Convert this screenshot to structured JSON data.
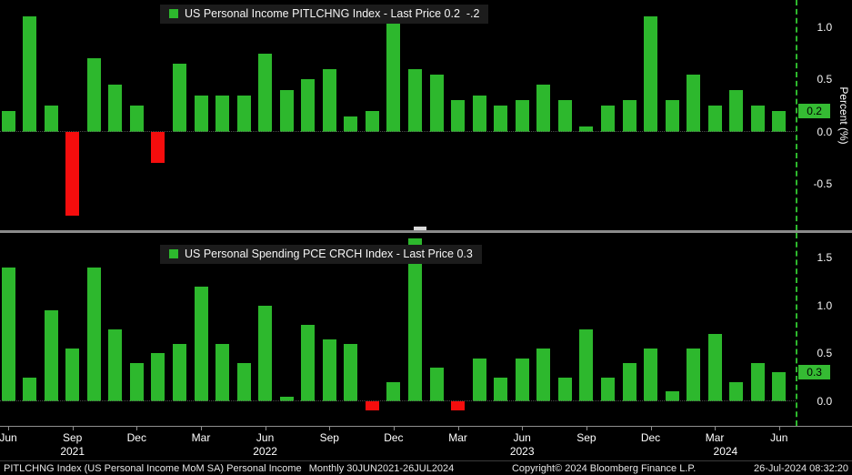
{
  "colors": {
    "background": "#000000",
    "bar_positive": "#2db82d",
    "bar_negative": "#f50d0d",
    "last_price_box": "#35bb33",
    "axis_text": "#f5f5f5"
  },
  "panels": [
    {
      "legend": "US Personal Income PITLCHNG Index - Last Price 0.2  -.2",
      "last_price_label": "0.2",
      "axis_title": "Percent (%)"
    },
    {
      "legend": "US Personal Spending PCE CRCH Index - Last Price 0.3",
      "last_price_label": "0.3"
    }
  ],
  "chart_data": [
    {
      "type": "bar",
      "title": "US Personal Income PITLCHNG Index - Last Price 0.2  -.2",
      "ylabel": "Percent (%)",
      "categories": [
        "Jun 2021",
        "Jul 2021",
        "Aug 2021",
        "Sep 2021",
        "Oct 2021",
        "Nov 2021",
        "Dec 2021",
        "Jan 2022",
        "Feb 2022",
        "Mar 2022",
        "Apr 2022",
        "May 2022",
        "Jun 2022",
        "Jul 2022",
        "Aug 2022",
        "Sep 2022",
        "Oct 2022",
        "Nov 2022",
        "Dec 2022",
        "Jan 2023",
        "Feb 2023",
        "Mar 2023",
        "Apr 2023",
        "May 2023",
        "Jun 2023",
        "Jul 2023",
        "Aug 2023",
        "Sep 2023",
        "Oct 2023",
        "Nov 2023",
        "Dec 2023",
        "Jan 2024",
        "Feb 2024",
        "Mar 2024",
        "Apr 2024",
        "May 2024",
        "Jun 2024"
      ],
      "values": [
        0.2,
        1.1,
        0.25,
        -0.8,
        0.7,
        0.45,
        0.25,
        -0.3,
        0.65,
        0.35,
        0.35,
        0.35,
        0.75,
        0.4,
        0.5,
        0.6,
        0.15,
        0.2,
        1.05,
        0.6,
        0.55,
        0.3,
        0.35,
        0.25,
        0.3,
        0.45,
        0.3,
        0.05,
        0.25,
        0.3,
        1.1,
        0.3,
        0.55,
        0.25,
        0.4,
        0.25,
        0.2
      ],
      "yticks": [
        "1.0",
        "0.5",
        "0.0",
        "-0.5"
      ],
      "ylim": [
        -0.94,
        1.26
      ],
      "last_price": 0.2,
      "grid": false,
      "legend_position": "top-center"
    },
    {
      "type": "bar",
      "title": "US Personal Spending PCE CRCH Index - Last Price 0.3",
      "ylabel": "Percent (%)",
      "categories": [
        "Jun 2021",
        "Jul 2021",
        "Aug 2021",
        "Sep 2021",
        "Oct 2021",
        "Nov 2021",
        "Dec 2021",
        "Jan 2022",
        "Feb 2022",
        "Mar 2022",
        "Apr 2022",
        "May 2022",
        "Jun 2022",
        "Jul 2022",
        "Aug 2022",
        "Sep 2022",
        "Oct 2022",
        "Nov 2022",
        "Dec 2022",
        "Jan 2023",
        "Feb 2023",
        "Mar 2023",
        "Apr 2023",
        "May 2023",
        "Jun 2023",
        "Jul 2023",
        "Aug 2023",
        "Sep 2023",
        "Oct 2023",
        "Nov 2023",
        "Dec 2023",
        "Jan 2024",
        "Feb 2024",
        "Mar 2024",
        "Apr 2024",
        "May 2024",
        "Jun 2024"
      ],
      "values": [
        1.4,
        0.25,
        0.95,
        0.55,
        1.4,
        0.75,
        0.4,
        0.5,
        0.6,
        1.2,
        0.6,
        0.4,
        1.0,
        0.05,
        0.8,
        0.65,
        0.6,
        -0.1,
        0.2,
        1.7,
        0.35,
        -0.1,
        0.45,
        0.25,
        0.45,
        0.55,
        0.25,
        0.75,
        0.25,
        0.4,
        0.55,
        0.1,
        0.55,
        0.7,
        0.2,
        0.4,
        0.3
      ],
      "yticks": [
        "1.5",
        "1.0",
        "0.5",
        "0.0"
      ],
      "ylim": [
        -0.26,
        1.76
      ],
      "last_price": 0.3,
      "grid": false,
      "legend_position": "top-center"
    }
  ],
  "x_axis": {
    "month_ticks": [
      {
        "label": "Jun",
        "index": 0
      },
      {
        "label": "Sep",
        "index": 3
      },
      {
        "label": "Dec",
        "index": 6
      },
      {
        "label": "Mar",
        "index": 9
      },
      {
        "label": "Jun",
        "index": 12
      },
      {
        "label": "Sep",
        "index": 15
      },
      {
        "label": "Dec",
        "index": 18
      },
      {
        "label": "Mar",
        "index": 21
      },
      {
        "label": "Jun",
        "index": 24
      },
      {
        "label": "Sep",
        "index": 27
      },
      {
        "label": "Dec",
        "index": 30
      },
      {
        "label": "Mar",
        "index": 33
      },
      {
        "label": "Jun",
        "index": 36
      }
    ],
    "year_ticks": [
      {
        "label": "2021",
        "index": 3
      },
      {
        "label": "2022",
        "index": 12
      },
      {
        "label": "2023",
        "index": 24
      },
      {
        "label": "2024",
        "index": 33.5
      }
    ]
  },
  "footer": {
    "left": "PITLCHNG Index (US Personal Income MoM SA) Personal Income",
    "period": "Monthly 30JUN2021-26JUL2024",
    "copyright": "Copyright© 2024 Bloomberg Finance L.P.",
    "timestamp": "26-Jul-2024 08:32:20"
  }
}
